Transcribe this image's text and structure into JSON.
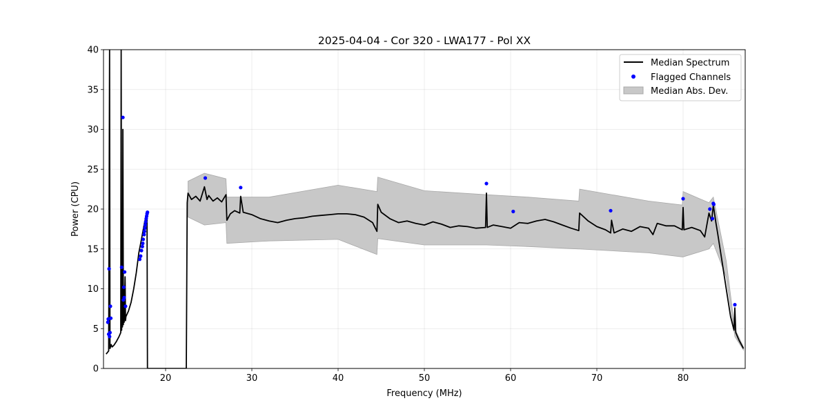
{
  "chart_data": {
    "type": "line",
    "title": "2025-04-04 - Cor 320 - LWA177 - Pol XX",
    "xlabel": "Frequency (MHz)",
    "ylabel": "Power (CPU)",
    "xlim": [
      12.8,
      87.2
    ],
    "ylim": [
      0,
      40
    ],
    "xticks": [
      20,
      30,
      40,
      50,
      60,
      70,
      80
    ],
    "yticks": [
      0,
      5,
      10,
      15,
      20,
      25,
      30,
      35,
      40
    ],
    "grid": true,
    "legend_position": "top-right",
    "legend": [
      "Median Spectrum",
      "Flagged Channels",
      "Median Abs. Dev."
    ],
    "series": [
      {
        "name": "Median Spectrum",
        "color": "#000000",
        "x": [
          13.1,
          13.4,
          13.5,
          13.55,
          13.7,
          13.8,
          14.0,
          14.3,
          14.6,
          14.8,
          14.85,
          14.9,
          14.95,
          15.0,
          15.05,
          15.1,
          15.15,
          15.2,
          15.3,
          15.35,
          15.4,
          15.7,
          16.0,
          16.3,
          16.6,
          16.9,
          17.2,
          17.5,
          17.8,
          17.85,
          17.9,
          18.0,
          22.4,
          22.5,
          22.6,
          23.0,
          23.5,
          24.0,
          24.5,
          24.8,
          25.0,
          25.5,
          26.0,
          26.5,
          27.0,
          27.1,
          27.5,
          28.0,
          28.6,
          28.7,
          29.0,
          30.0,
          31.0,
          32.0,
          33.0,
          34.0,
          35.0,
          36.0,
          37.0,
          38.0,
          39.0,
          40.0,
          41.0,
          42.0,
          43.0,
          44.0,
          44.5,
          44.6,
          45.0,
          46.0,
          47.0,
          48.0,
          49.0,
          50.0,
          51.0,
          52.0,
          53.0,
          54.0,
          55.0,
          56.0,
          57.1,
          57.2,
          57.3,
          58.0,
          59.0,
          60.0,
          61.0,
          62.0,
          63.0,
          64.0,
          65.0,
          66.0,
          67.0,
          67.9,
          68.0,
          69.0,
          70.0,
          71.0,
          71.6,
          71.7,
          72.0,
          73.0,
          74.0,
          75.0,
          76.0,
          76.5,
          77.0,
          78.0,
          79.0,
          79.9,
          80.0,
          80.1,
          81.0,
          82.0,
          82.5,
          83.0,
          83.3,
          83.5,
          83.8,
          84.0,
          84.5,
          85.0,
          85.5,
          85.9,
          86.0,
          86.1,
          86.5,
          87.0
        ],
        "values": [
          1.8,
          2.2,
          40,
          2.5,
          3.0,
          2.7,
          2.9,
          3.4,
          4.0,
          4.5,
          40,
          4.8,
          12.5,
          5.2,
          30.0,
          5.5,
          10.0,
          5.8,
          11.5,
          6.0,
          6.5,
          7.2,
          8.3,
          10.0,
          12.0,
          14.5,
          16.2,
          18.0,
          19.5,
          19.2,
          0,
          0,
          0,
          20.8,
          22.0,
          21.2,
          21.6,
          21.0,
          22.8,
          21.2,
          21.7,
          21.0,
          21.4,
          20.9,
          21.8,
          18.6,
          19.4,
          19.8,
          19.5,
          21.6,
          19.6,
          19.3,
          18.8,
          18.5,
          18.3,
          18.6,
          18.8,
          18.9,
          19.1,
          19.2,
          19.3,
          19.4,
          19.4,
          19.3,
          19.0,
          18.3,
          17.2,
          20.6,
          19.6,
          18.8,
          18.3,
          18.5,
          18.2,
          18.0,
          18.4,
          18.1,
          17.7,
          17.9,
          17.8,
          17.6,
          17.7,
          22.0,
          17.7,
          18.0,
          17.8,
          17.6,
          18.3,
          18.2,
          18.5,
          18.7,
          18.4,
          18.0,
          17.6,
          17.3,
          19.5,
          18.5,
          17.8,
          17.4,
          17.0,
          18.6,
          17.0,
          17.5,
          17.2,
          17.8,
          17.6,
          16.8,
          18.2,
          17.9,
          17.9,
          17.4,
          20.2,
          17.4,
          17.7,
          17.3,
          16.5,
          19.5,
          18.5,
          20.5,
          18.3,
          17.0,
          13.5,
          10.0,
          6.5,
          4.8,
          7.6,
          4.5,
          3.5,
          2.5
        ]
      }
    ],
    "band": {
      "name": "Median Abs. Dev.",
      "color": "#c8c8c8",
      "x": [
        22.6,
        24.5,
        27.0,
        27.1,
        32.0,
        40.0,
        44.5,
        44.6,
        50.0,
        57.2,
        62.0,
        67.9,
        68.0,
        76.0,
        79.9,
        80.0,
        83.0,
        83.5,
        85.0,
        86.0,
        87.0
      ],
      "upper": [
        23.5,
        24.5,
        23.8,
        21.5,
        21.5,
        23.0,
        22.2,
        24.0,
        22.3,
        21.8,
        21.5,
        21.0,
        22.5,
        21.0,
        20.5,
        22.2,
        20.8,
        21.5,
        13.5,
        5.0,
        2.7
      ],
      "lower": [
        19.0,
        18.0,
        18.3,
        15.7,
        16.0,
        16.2,
        14.3,
        16.3,
        15.5,
        15.5,
        15.3,
        15.0,
        15.0,
        14.5,
        14.0,
        14.0,
        15.0,
        15.7,
        11.5,
        4.0,
        2.3
      ]
    },
    "flagged_channels": {
      "name": "Flagged Channels",
      "color": "#0000ff",
      "x": [
        13.3,
        13.35,
        13.4,
        13.45,
        13.5,
        13.55,
        13.6,
        13.65,
        14.9,
        15.05,
        15.1,
        15.15,
        15.2,
        15.25,
        15.35,
        17.0,
        17.1,
        17.2,
        17.3,
        17.35,
        17.4,
        17.5,
        17.55,
        17.6,
        17.65,
        17.7,
        17.75,
        17.8,
        17.85,
        17.9,
        24.6,
        28.7,
        57.2,
        60.3,
        71.6,
        80.0,
        83.1,
        83.4,
        83.5,
        83.55,
        86.0
      ],
      "values": [
        5.8,
        6.2,
        4.3,
        12.5,
        4.0,
        4.5,
        7.8,
        6.3,
        12.7,
        31.5,
        8.6,
        10.2,
        8.9,
        12.1,
        7.8,
        13.7,
        14.1,
        14.8,
        15.3,
        15.7,
        16.2,
        16.8,
        17.2,
        17.6,
        18.0,
        18.4,
        18.8,
        19.1,
        19.4,
        19.6,
        23.9,
        22.7,
        23.2,
        19.7,
        19.8,
        21.3,
        20.0,
        18.8,
        20.7,
        20.6,
        8.0
      ]
    }
  }
}
